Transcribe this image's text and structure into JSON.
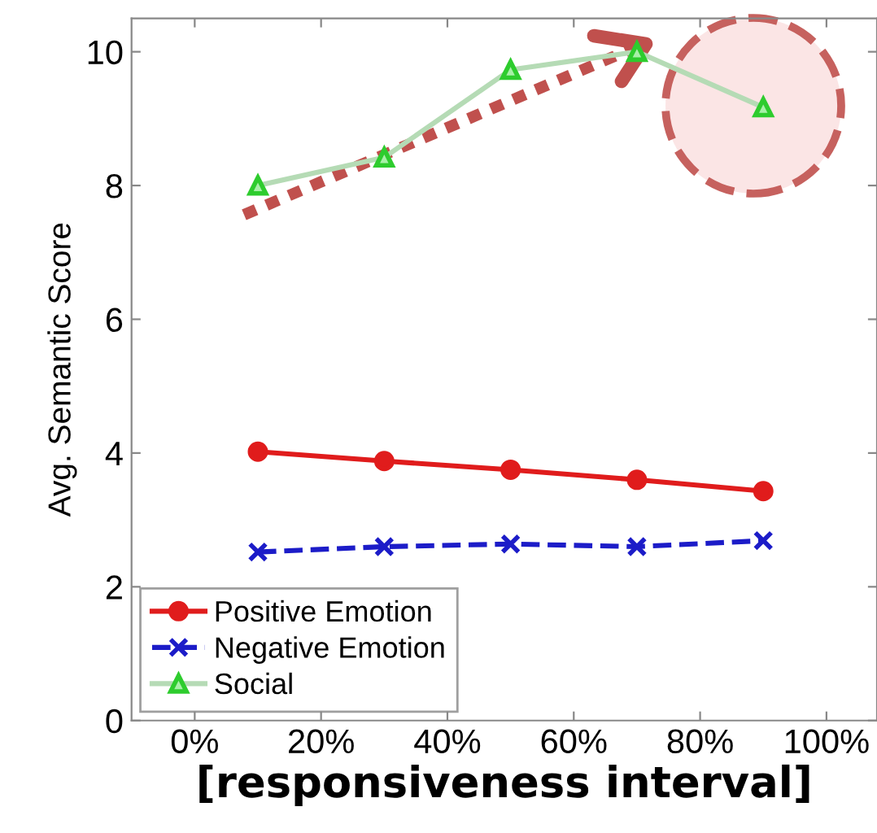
{
  "chart_data": {
    "type": "line",
    "xlabel": "[responsiveness interval]",
    "ylabel": "Avg. Semantic Score",
    "x": [
      10,
      30,
      50,
      70,
      90
    ],
    "series": [
      {
        "name": "Positive Emotion",
        "color": "#e01c1c",
        "values": [
          4.02,
          3.88,
          3.75,
          3.6,
          3.43
        ],
        "marker": "circle",
        "line_style": "solid"
      },
      {
        "name": "Negative Emotion",
        "color": "#1c1cc8",
        "values": [
          2.52,
          2.6,
          2.64,
          2.6,
          2.69
        ],
        "marker": "cross",
        "line_style": "dashed"
      },
      {
        "name": "Social",
        "color": "#2ecc2e",
        "values": [
          8.0,
          8.42,
          9.73,
          10.0,
          9.17
        ],
        "marker": "triangle",
        "line_style": "solid"
      }
    ],
    "xlim": [
      -10,
      108
    ],
    "xticks": [
      {
        "value": 0,
        "label": "0%"
      },
      {
        "value": 20,
        "label": "20%"
      },
      {
        "value": 40,
        "label": "40%"
      },
      {
        "value": 60,
        "label": "60%"
      },
      {
        "value": 80,
        "label": "80%"
      },
      {
        "value": 100,
        "label": "100%"
      }
    ],
    "ylim": [
      0,
      10.5
    ],
    "yticks": [
      0,
      2,
      4,
      6,
      8,
      10
    ],
    "grid": false,
    "legend": "bottom left"
  }
}
